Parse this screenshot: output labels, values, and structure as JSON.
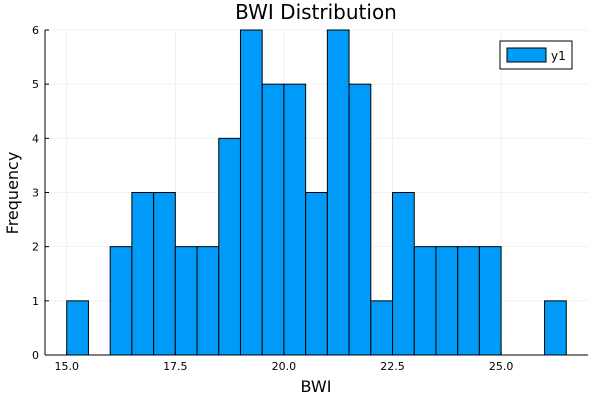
{
  "chart_data": {
    "type": "bar",
    "title": "BWI Distribution",
    "xlabel": "BWI",
    "ylabel": "Frequency",
    "xlim": [
      14.5,
      27
    ],
    "ylim": [
      0,
      6
    ],
    "xticks": [
      15.0,
      17.5,
      20.0,
      22.5,
      25.0
    ],
    "xtick_labels": [
      "15.0",
      "17.5",
      "20.0",
      "22.5",
      "25.0"
    ],
    "yticks": [
      0,
      1,
      2,
      3,
      4,
      5,
      6
    ],
    "ytick_labels": [
      "0",
      "1",
      "2",
      "3",
      "4",
      "5",
      "6"
    ],
    "bin_width": 0.5,
    "bins": [
      {
        "start": 15.0,
        "count": 1
      },
      {
        "start": 15.5,
        "count": 0
      },
      {
        "start": 16.0,
        "count": 2
      },
      {
        "start": 16.5,
        "count": 3
      },
      {
        "start": 17.0,
        "count": 3
      },
      {
        "start": 17.5,
        "count": 2
      },
      {
        "start": 18.0,
        "count": 2
      },
      {
        "start": 18.5,
        "count": 4
      },
      {
        "start": 19.0,
        "count": 6
      },
      {
        "start": 19.5,
        "count": 5
      },
      {
        "start": 20.0,
        "count": 5
      },
      {
        "start": 20.5,
        "count": 3
      },
      {
        "start": 21.0,
        "count": 6
      },
      {
        "start": 21.5,
        "count": 5
      },
      {
        "start": 22.0,
        "count": 1
      },
      {
        "start": 22.5,
        "count": 3
      },
      {
        "start": 23.0,
        "count": 2
      },
      {
        "start": 23.5,
        "count": 2
      },
      {
        "start": 24.0,
        "count": 2
      },
      {
        "start": 24.5,
        "count": 2
      },
      {
        "start": 25.0,
        "count": 0
      },
      {
        "start": 25.5,
        "count": 0
      },
      {
        "start": 26.0,
        "count": 1
      }
    ],
    "series": [
      {
        "name": "y1"
      }
    ],
    "bar_color": "#009af9",
    "grid": true,
    "legend_position": "top-right"
  }
}
